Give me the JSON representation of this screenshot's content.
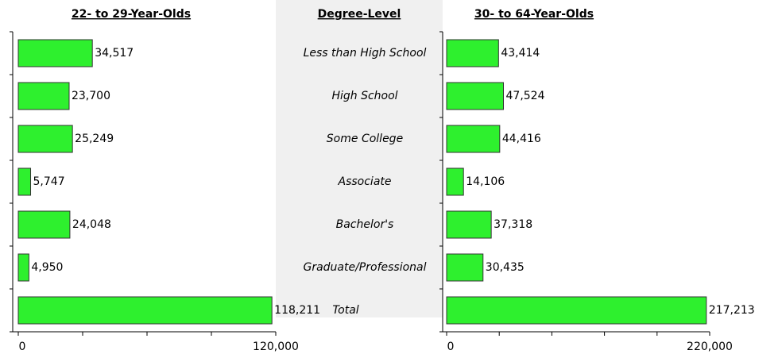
{
  "category_header": "Degree-Level",
  "chart_data": [
    {
      "type": "bar",
      "orientation": "horizontal",
      "title": "22- to 29-Year-Olds",
      "categories": [
        "Less than High School",
        "High School",
        "Some College",
        "Associate",
        "Bachelor's",
        "Graduate/Professional",
        "Total"
      ],
      "values": [
        34517,
        23700,
        25249,
        5747,
        24048,
        4950,
        118211
      ],
      "value_labels": [
        "34,517",
        "23,700",
        "25,249",
        "5,747",
        "24,048",
        "4,950",
        "118,211"
      ],
      "color": "#2ef02e",
      "xlim": [
        0,
        120000
      ],
      "xticks": [
        0,
        {
          "value": 120000,
          "label": "120,000"
        }
      ],
      "minor_xticks": [
        30000,
        60000,
        90000
      ]
    },
    {
      "type": "bar",
      "orientation": "horizontal",
      "title": "30- to 64-Year-Olds",
      "values": [
        43414,
        47524,
        44416,
        14106,
        37318,
        30435,
        217213
      ],
      "value_labels": [
        "43,414",
        "47,524",
        "44,416",
        "14,106",
        "37,318",
        "30,435",
        "217,213"
      ],
      "color": "#2ef02e",
      "xlim": [
        0,
        220000
      ],
      "xticks": [
        0,
        {
          "value": 220000,
          "label": "220,000"
        }
      ],
      "minor_xticks": [
        44000,
        88000,
        132000,
        176000
      ]
    }
  ]
}
